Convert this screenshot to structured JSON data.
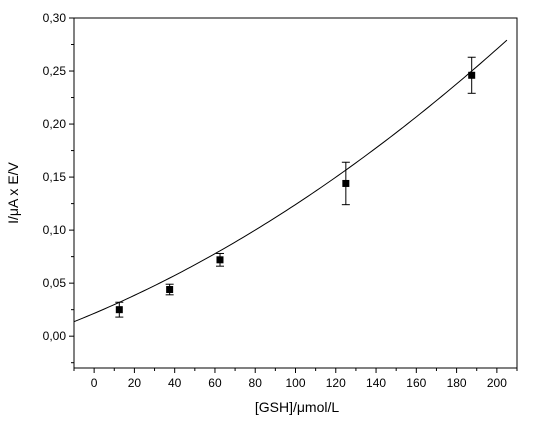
{
  "chart_data": {
    "type": "scatter",
    "title": "",
    "xlabel": "[GSH]/μmol/L",
    "ylabel": "I/μA x E/V",
    "xlim": [
      -10,
      210
    ],
    "ylim": [
      -0.03,
      0.3
    ],
    "xticks": [
      0,
      20,
      40,
      60,
      80,
      100,
      120,
      140,
      160,
      180,
      200
    ],
    "xtick_labels": [
      "0",
      "20",
      "40",
      "60",
      "80",
      "100",
      "120",
      "140",
      "160",
      "180",
      "200"
    ],
    "yticks": [
      0.0,
      0.05,
      0.1,
      0.15,
      0.2,
      0.25,
      0.3
    ],
    "ytick_labels": [
      "0,00",
      "0,05",
      "0,10",
      "0,15",
      "0,20",
      "0,25",
      "0,30"
    ],
    "grid": false,
    "legend": "none",
    "marker": "filled-square",
    "color": "#000000",
    "points": [
      {
        "x": 12.5,
        "y": 0.025,
        "err": 0.007
      },
      {
        "x": 37.5,
        "y": 0.044,
        "err": 0.005
      },
      {
        "x": 62.5,
        "y": 0.072,
        "err": 0.006
      },
      {
        "x": 125,
        "y": 0.144,
        "err": 0.02
      },
      {
        "x": 187.5,
        "y": 0.246,
        "err": 0.017
      }
    ],
    "fit": {
      "type": "polynomial",
      "x_range": [
        -10,
        205
      ],
      "coefficients": [
        0.0215,
        0.000806,
        2.2e-06
      ]
    }
  }
}
